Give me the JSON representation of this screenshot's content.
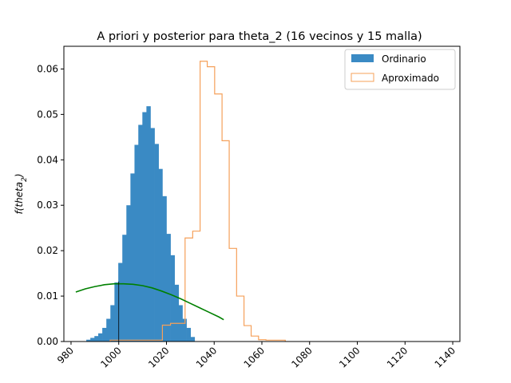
{
  "chart_data": {
    "type": "histogram",
    "title": "A priori y posterior para theta_2 (16 vecinos y 15 malla)",
    "ylabel": "f(theta_2)",
    "xlabel": "",
    "xlim": [
      977,
      1143
    ],
    "ylim": [
      0,
      0.065
    ],
    "xticks": [
      980,
      1000,
      1020,
      1040,
      1060,
      1080,
      1100,
      1120,
      1140
    ],
    "yticks": [
      0.0,
      0.01,
      0.02,
      0.03,
      0.04,
      0.05,
      0.06
    ],
    "ytick_labels": [
      "0.00",
      "0.01",
      "0.02",
      "0.03",
      "0.04",
      "0.05",
      "0.06"
    ],
    "legend_position": "top-right",
    "colors": {
      "ordinario": "#3a8ac4",
      "aproximado": "#f5a05a",
      "prior": "#008000",
      "vline": "#000000"
    },
    "series": [
      {
        "name": "Ordinario",
        "style": "filled",
        "bin_width": 1.68,
        "bin_starts": [
          986.4,
          988.1,
          989.8,
          991.4,
          993.1,
          994.8,
          996.5,
          998.2,
          999.8,
          1001.5,
          1003.2,
          1004.9,
          1006.6,
          1008.2,
          1009.9,
          1011.6,
          1013.3,
          1015.0,
          1016.6,
          1018.3,
          1020.0,
          1021.7,
          1023.4,
          1025.0,
          1026.7,
          1028.4,
          1030.1
        ],
        "values": [
          0.0004,
          0.0008,
          0.0012,
          0.0018,
          0.003,
          0.005,
          0.008,
          0.013,
          0.0173,
          0.0235,
          0.03,
          0.037,
          0.0433,
          0.0477,
          0.0505,
          0.0518,
          0.047,
          0.0435,
          0.038,
          0.032,
          0.0237,
          0.019,
          0.0125,
          0.008,
          0.005,
          0.003,
          0.001
        ]
      },
      {
        "name": "Aproximado",
        "style": "step",
        "edges": [
          996.4,
          1018.3,
          1021.7,
          1024.8,
          1027.8,
          1031.0,
          1034.1,
          1037.1,
          1040.2,
          1043.3,
          1046.3,
          1049.4,
          1052.5,
          1055.5,
          1058.6,
          1061.7,
          1069.8
        ],
        "values": [
          0.0003,
          0.0036,
          0.004,
          0.004,
          0.0228,
          0.0243,
          0.0617,
          0.0605,
          0.0545,
          0.0442,
          0.0205,
          0.01,
          0.0035,
          0.0012,
          0.0004,
          0.0003
        ]
      },
      {
        "name": "",
        "style": "line",
        "x": [
          982,
          986,
          990,
          994,
          998,
          1002,
          1006,
          1010,
          1014,
          1018,
          1022,
          1026,
          1030,
          1034,
          1038,
          1042,
          1044
        ],
        "y": [
          0.0109,
          0.0116,
          0.0121,
          0.0125,
          0.0127,
          0.0127,
          0.0126,
          0.0123,
          0.0118,
          0.0111,
          0.0103,
          0.0094,
          0.0084,
          0.0074,
          0.0064,
          0.0054,
          0.0048
        ]
      }
    ],
    "vline": {
      "x": 1000,
      "y_top": 0.0132
    }
  }
}
